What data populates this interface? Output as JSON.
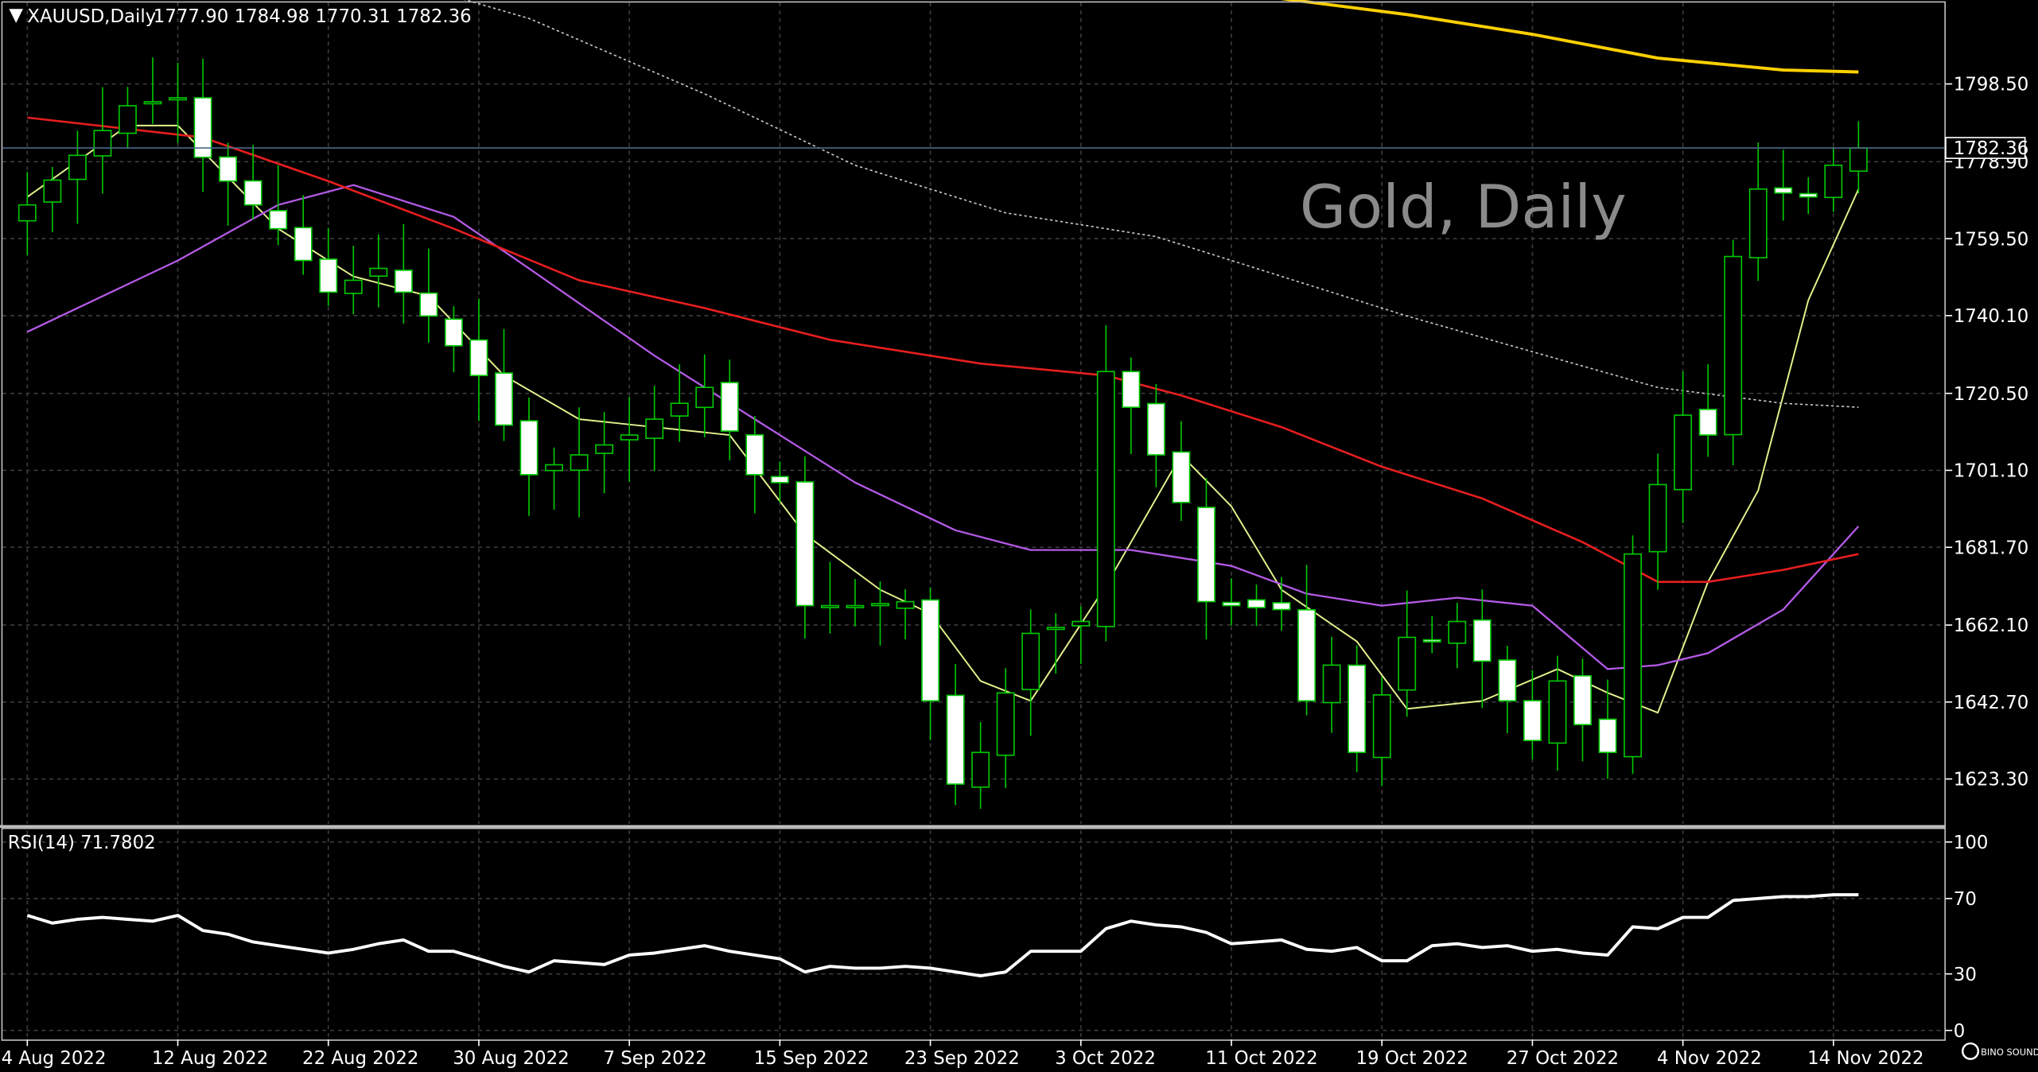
{
  "header": {
    "arrow": "▼",
    "symbol": "XAUUSD,Daily",
    "ohlc": "1777.90 1784.98 1770.31 1782.36"
  },
  "watermark": "Gold, Daily",
  "current_price_label": "1782.36",
  "rsi": {
    "label": "RSI(14) 71.7802",
    "scale_labels": [
      "100",
      "70",
      "30",
      "0"
    ]
  },
  "brand": "BINO SOUND",
  "colors": {
    "background": "#000000",
    "grid": "#3c3c3c",
    "candle_up_body": "#000000",
    "candle_down_body": "#ffffff",
    "candle_wick": "#00c800",
    "sma5": "#e6f08c",
    "sma20": "#b45ae6",
    "sma50": "#e61e1e",
    "sma100": "#c8c8c8",
    "sma200": "#ffd000",
    "rsi_line": "#ffffff",
    "price_line": "#4a6a8a"
  },
  "chart_data": [
    {
      "type": "candlestick",
      "title": "XAUUSD,Daily",
      "y_axis": {
        "ticks": [
          1798.5,
          1778.9,
          1759.5,
          1740.1,
          1720.5,
          1701.1,
          1681.7,
          1662.1,
          1642.7,
          1623.3
        ],
        "range": [
          1612,
          1819
        ]
      },
      "x_axis": {
        "tick_labels": [
          "4 Aug 2022",
          "12 Aug 2022",
          "22 Aug 2022",
          "30 Aug 2022",
          "7 Sep 2022",
          "15 Sep 2022",
          "23 Sep 2022",
          "3 Oct 2022",
          "11 Oct 2022",
          "19 Oct 2022",
          "27 Oct 2022",
          "4 Nov 2022",
          "14 Nov 2022"
        ]
      },
      "anchors": [
        {
          "i": 0,
          "close": 1768
        },
        {
          "i": 4,
          "close": 1793
        },
        {
          "i": 6,
          "close": 1795
        },
        {
          "i": 7,
          "close": 1780
        },
        {
          "i": 10,
          "close": 1762
        },
        {
          "i": 12,
          "close": 1746
        },
        {
          "i": 14,
          "close": 1752
        },
        {
          "i": 16,
          "close": 1740
        },
        {
          "i": 18,
          "close": 1725
        },
        {
          "i": 20,
          "close": 1700
        },
        {
          "i": 24,
          "close": 1710
        },
        {
          "i": 27,
          "close": 1722
        },
        {
          "i": 29,
          "close": 1700
        },
        {
          "i": 30,
          "close": 1698
        },
        {
          "i": 31,
          "close": 1667
        },
        {
          "i": 33,
          "close": 1667
        },
        {
          "i": 35,
          "close": 1668
        },
        {
          "i": 36,
          "close": 1643
        },
        {
          "i": 37,
          "close": 1622
        },
        {
          "i": 38,
          "close": 1630
        },
        {
          "i": 40,
          "close": 1660
        },
        {
          "i": 42,
          "close": 1663
        },
        {
          "i": 43,
          "close": 1726
        },
        {
          "i": 44,
          "close": 1717
        },
        {
          "i": 46,
          "close": 1693
        },
        {
          "i": 47,
          "close": 1668
        },
        {
          "i": 48,
          "close": 1667
        },
        {
          "i": 50,
          "close": 1666
        },
        {
          "i": 51,
          "close": 1643
        },
        {
          "i": 52,
          "close": 1652
        },
        {
          "i": 53,
          "close": 1630
        },
        {
          "i": 55,
          "close": 1659
        },
        {
          "i": 56,
          "close": 1658
        },
        {
          "i": 57,
          "close": 1663
        },
        {
          "i": 59,
          "close": 1643
        },
        {
          "i": 60,
          "close": 1633
        },
        {
          "i": 61,
          "close": 1648
        },
        {
          "i": 62,
          "close": 1637
        },
        {
          "i": 63,
          "close": 1630
        },
        {
          "i": 64,
          "close": 1680
        },
        {
          "i": 66,
          "close": 1715
        },
        {
          "i": 67,
          "close": 1710
        },
        {
          "i": 68,
          "close": 1755
        },
        {
          "i": 69,
          "close": 1772
        },
        {
          "i": 71,
          "close": 1770
        },
        {
          "i": 72,
          "close": 1778
        },
        {
          "i": 73,
          "close": 1782.36
        }
      ],
      "series": [
        {
          "id": "sma5",
          "points": [
            [
              0,
              1770
            ],
            [
              4,
              1788
            ],
            [
              6,
              1788
            ],
            [
              10,
              1762
            ],
            [
              13,
              1750
            ],
            [
              16,
              1745
            ],
            [
              19,
              1725
            ],
            [
              22,
              1714
            ],
            [
              25,
              1712
            ],
            [
              28,
              1710
            ],
            [
              31,
              1685
            ],
            [
              34,
              1671
            ],
            [
              36,
              1665
            ],
            [
              38,
              1648
            ],
            [
              40,
              1643
            ],
            [
              43,
              1672
            ],
            [
              46,
              1705
            ],
            [
              48,
              1692
            ],
            [
              50,
              1671
            ],
            [
              53,
              1658
            ],
            [
              55,
              1641
            ],
            [
              58,
              1643
            ],
            [
              61,
              1651
            ],
            [
              63,
              1645
            ],
            [
              65,
              1640
            ],
            [
              67,
              1673
            ],
            [
              69,
              1696
            ],
            [
              71,
              1744
            ],
            [
              73,
              1772
            ]
          ]
        },
        {
          "id": "sma20",
          "points": [
            [
              0,
              1736
            ],
            [
              6,
              1754
            ],
            [
              10,
              1768
            ],
            [
              13,
              1773
            ],
            [
              17,
              1765
            ],
            [
              20,
              1752
            ],
            [
              25,
              1730
            ],
            [
              29,
              1714
            ],
            [
              33,
              1698
            ],
            [
              37,
              1686
            ],
            [
              40,
              1681
            ],
            [
              44,
              1681
            ],
            [
              48,
              1677
            ],
            [
              51,
              1670
            ],
            [
              54,
              1667
            ],
            [
              57,
              1669
            ],
            [
              60,
              1667
            ],
            [
              63,
              1651
            ],
            [
              65,
              1652
            ],
            [
              67,
              1655
            ],
            [
              70,
              1666
            ],
            [
              73,
              1687
            ]
          ]
        },
        {
          "id": "sma50",
          "points": [
            [
              0,
              1790
            ],
            [
              7,
              1785
            ],
            [
              12,
              1774
            ],
            [
              17,
              1762
            ],
            [
              22,
              1749
            ],
            [
              27,
              1742
            ],
            [
              32,
              1734
            ],
            [
              38,
              1728
            ],
            [
              43,
              1725
            ],
            [
              46,
              1720
            ],
            [
              50,
              1712
            ],
            [
              54,
              1702
            ],
            [
              58,
              1694
            ],
            [
              62,
              1683
            ],
            [
              65,
              1673
            ],
            [
              67,
              1673
            ],
            [
              70,
              1676
            ],
            [
              73,
              1680
            ]
          ]
        },
        {
          "id": "sma100",
          "points": [
            [
              13,
              1828
            ],
            [
              20,
              1815
            ],
            [
              27,
              1796
            ],
            [
              33,
              1778
            ],
            [
              39,
              1766
            ],
            [
              45,
              1760
            ],
            [
              50,
              1750
            ],
            [
              55,
              1740
            ],
            [
              60,
              1731
            ],
            [
              65,
              1722
            ],
            [
              70,
              1718
            ],
            [
              73,
              1717
            ]
          ]
        },
        {
          "id": "sma200",
          "points": [
            [
              50,
              1820
            ],
            [
              55,
              1816
            ],
            [
              60,
              1811
            ],
            [
              65,
              1805
            ],
            [
              70,
              1802
            ],
            [
              73,
              1801.5
            ]
          ]
        }
      ]
    },
    {
      "type": "line",
      "title": "RSI(14) 71.7802",
      "ylim": [
        0,
        100
      ],
      "y_ticks": [
        100,
        70,
        30,
        0
      ],
      "series": [
        {
          "id": "rsi",
          "points": [
            [
              0,
              61
            ],
            [
              1,
              57
            ],
            [
              2,
              59
            ],
            [
              3,
              60
            ],
            [
              4,
              59
            ],
            [
              5,
              58
            ],
            [
              6,
              61
            ],
            [
              7,
              53
            ],
            [
              8,
              51
            ],
            [
              9,
              47
            ],
            [
              10,
              45
            ],
            [
              11,
              43
            ],
            [
              12,
              41
            ],
            [
              13,
              43
            ],
            [
              14,
              46
            ],
            [
              15,
              48
            ],
            [
              16,
              42
            ],
            [
              17,
              42
            ],
            [
              18,
              38
            ],
            [
              19,
              34
            ],
            [
              20,
              31
            ],
            [
              21,
              37
            ],
            [
              22,
              36
            ],
            [
              23,
              35
            ],
            [
              24,
              40
            ],
            [
              25,
              41
            ],
            [
              26,
              43
            ],
            [
              27,
              45
            ],
            [
              28,
              42
            ],
            [
              29,
              40
            ],
            [
              30,
              38
            ],
            [
              31,
              31
            ],
            [
              32,
              34
            ],
            [
              33,
              33
            ],
            [
              34,
              33
            ],
            [
              35,
              34
            ],
            [
              36,
              33
            ],
            [
              37,
              31
            ],
            [
              38,
              29
            ],
            [
              39,
              31
            ],
            [
              40,
              42
            ],
            [
              41,
              42
            ],
            [
              42,
              42
            ],
            [
              43,
              54
            ],
            [
              44,
              58
            ],
            [
              45,
              56
            ],
            [
              46,
              55
            ],
            [
              47,
              52
            ],
            [
              48,
              46
            ],
            [
              49,
              47
            ],
            [
              50,
              48
            ],
            [
              51,
              43
            ],
            [
              52,
              42
            ],
            [
              53,
              44
            ],
            [
              54,
              37
            ],
            [
              55,
              37
            ],
            [
              56,
              45
            ],
            [
              57,
              46
            ],
            [
              58,
              44
            ],
            [
              59,
              45
            ],
            [
              60,
              42
            ],
            [
              61,
              43
            ],
            [
              62,
              41
            ],
            [
              63,
              40
            ],
            [
              64,
              55
            ],
            [
              65,
              54
            ],
            [
              66,
              60
            ],
            [
              67,
              60
            ],
            [
              68,
              69
            ],
            [
              69,
              70
            ],
            [
              70,
              71
            ],
            [
              71,
              71
            ],
            [
              72,
              72
            ],
            [
              73,
              72
            ]
          ]
        }
      ]
    }
  ]
}
